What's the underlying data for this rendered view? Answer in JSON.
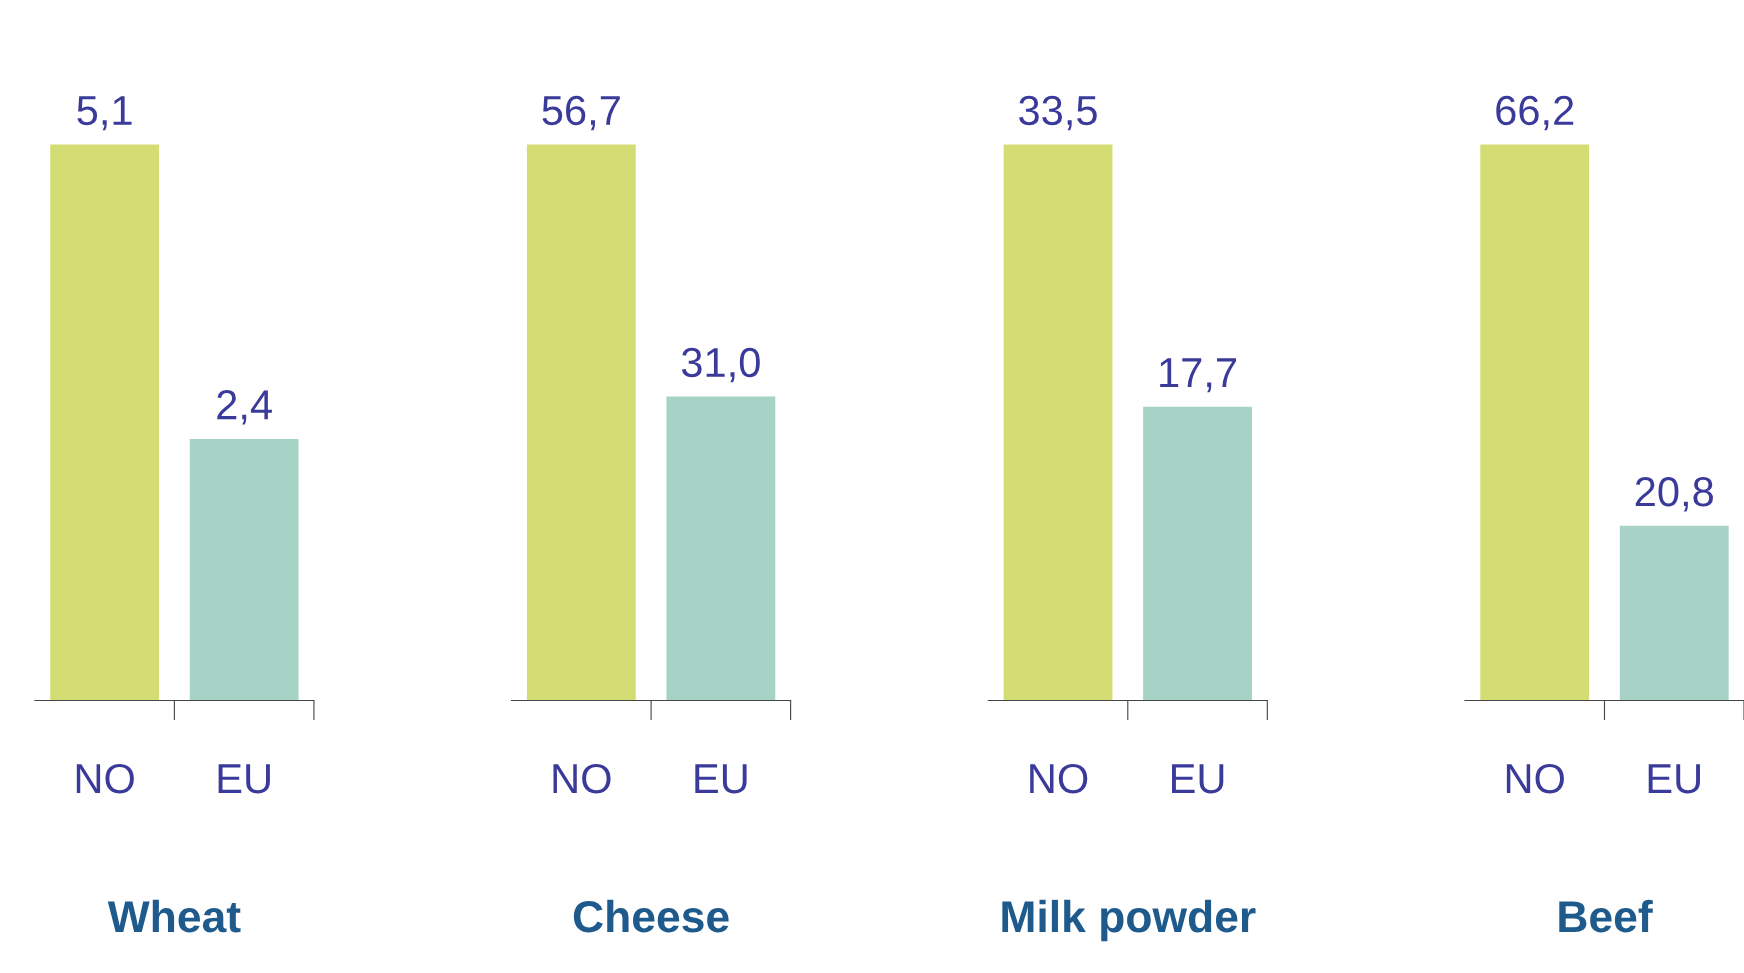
{
  "chart_data": [
    {
      "type": "bar",
      "xlabel": "Wheat",
      "categories": [
        "NO",
        "EU"
      ],
      "colors": [
        "#d3dd74",
        "#a6d3c6"
      ],
      "values": [
        5.1,
        2.4
      ],
      "value_labels": [
        "5,1",
        "2,4"
      ]
    },
    {
      "type": "bar",
      "xlabel": "Cheese",
      "categories": [
        "NO",
        "EU"
      ],
      "colors": [
        "#d3dd74",
        "#a6d3c6"
      ],
      "values": [
        56.7,
        31.0
      ],
      "value_labels": [
        "56,7",
        "31,0"
      ]
    },
    {
      "type": "bar",
      "xlabel": "Milk powder",
      "categories": [
        "NO",
        "EU"
      ],
      "colors": [
        "#d3dd74",
        "#a6d3c6"
      ],
      "values": [
        33.5,
        17.7
      ],
      "value_labels": [
        "33,5",
        "17,7"
      ]
    },
    {
      "type": "bar",
      "xlabel": "Beef",
      "categories": [
        "NO",
        "EU"
      ],
      "colors": [
        "#d3dd74",
        "#a6d3c6"
      ],
      "values": [
        66.2,
        20.8
      ],
      "value_labels": [
        "66,2",
        "20,8"
      ]
    }
  ]
}
